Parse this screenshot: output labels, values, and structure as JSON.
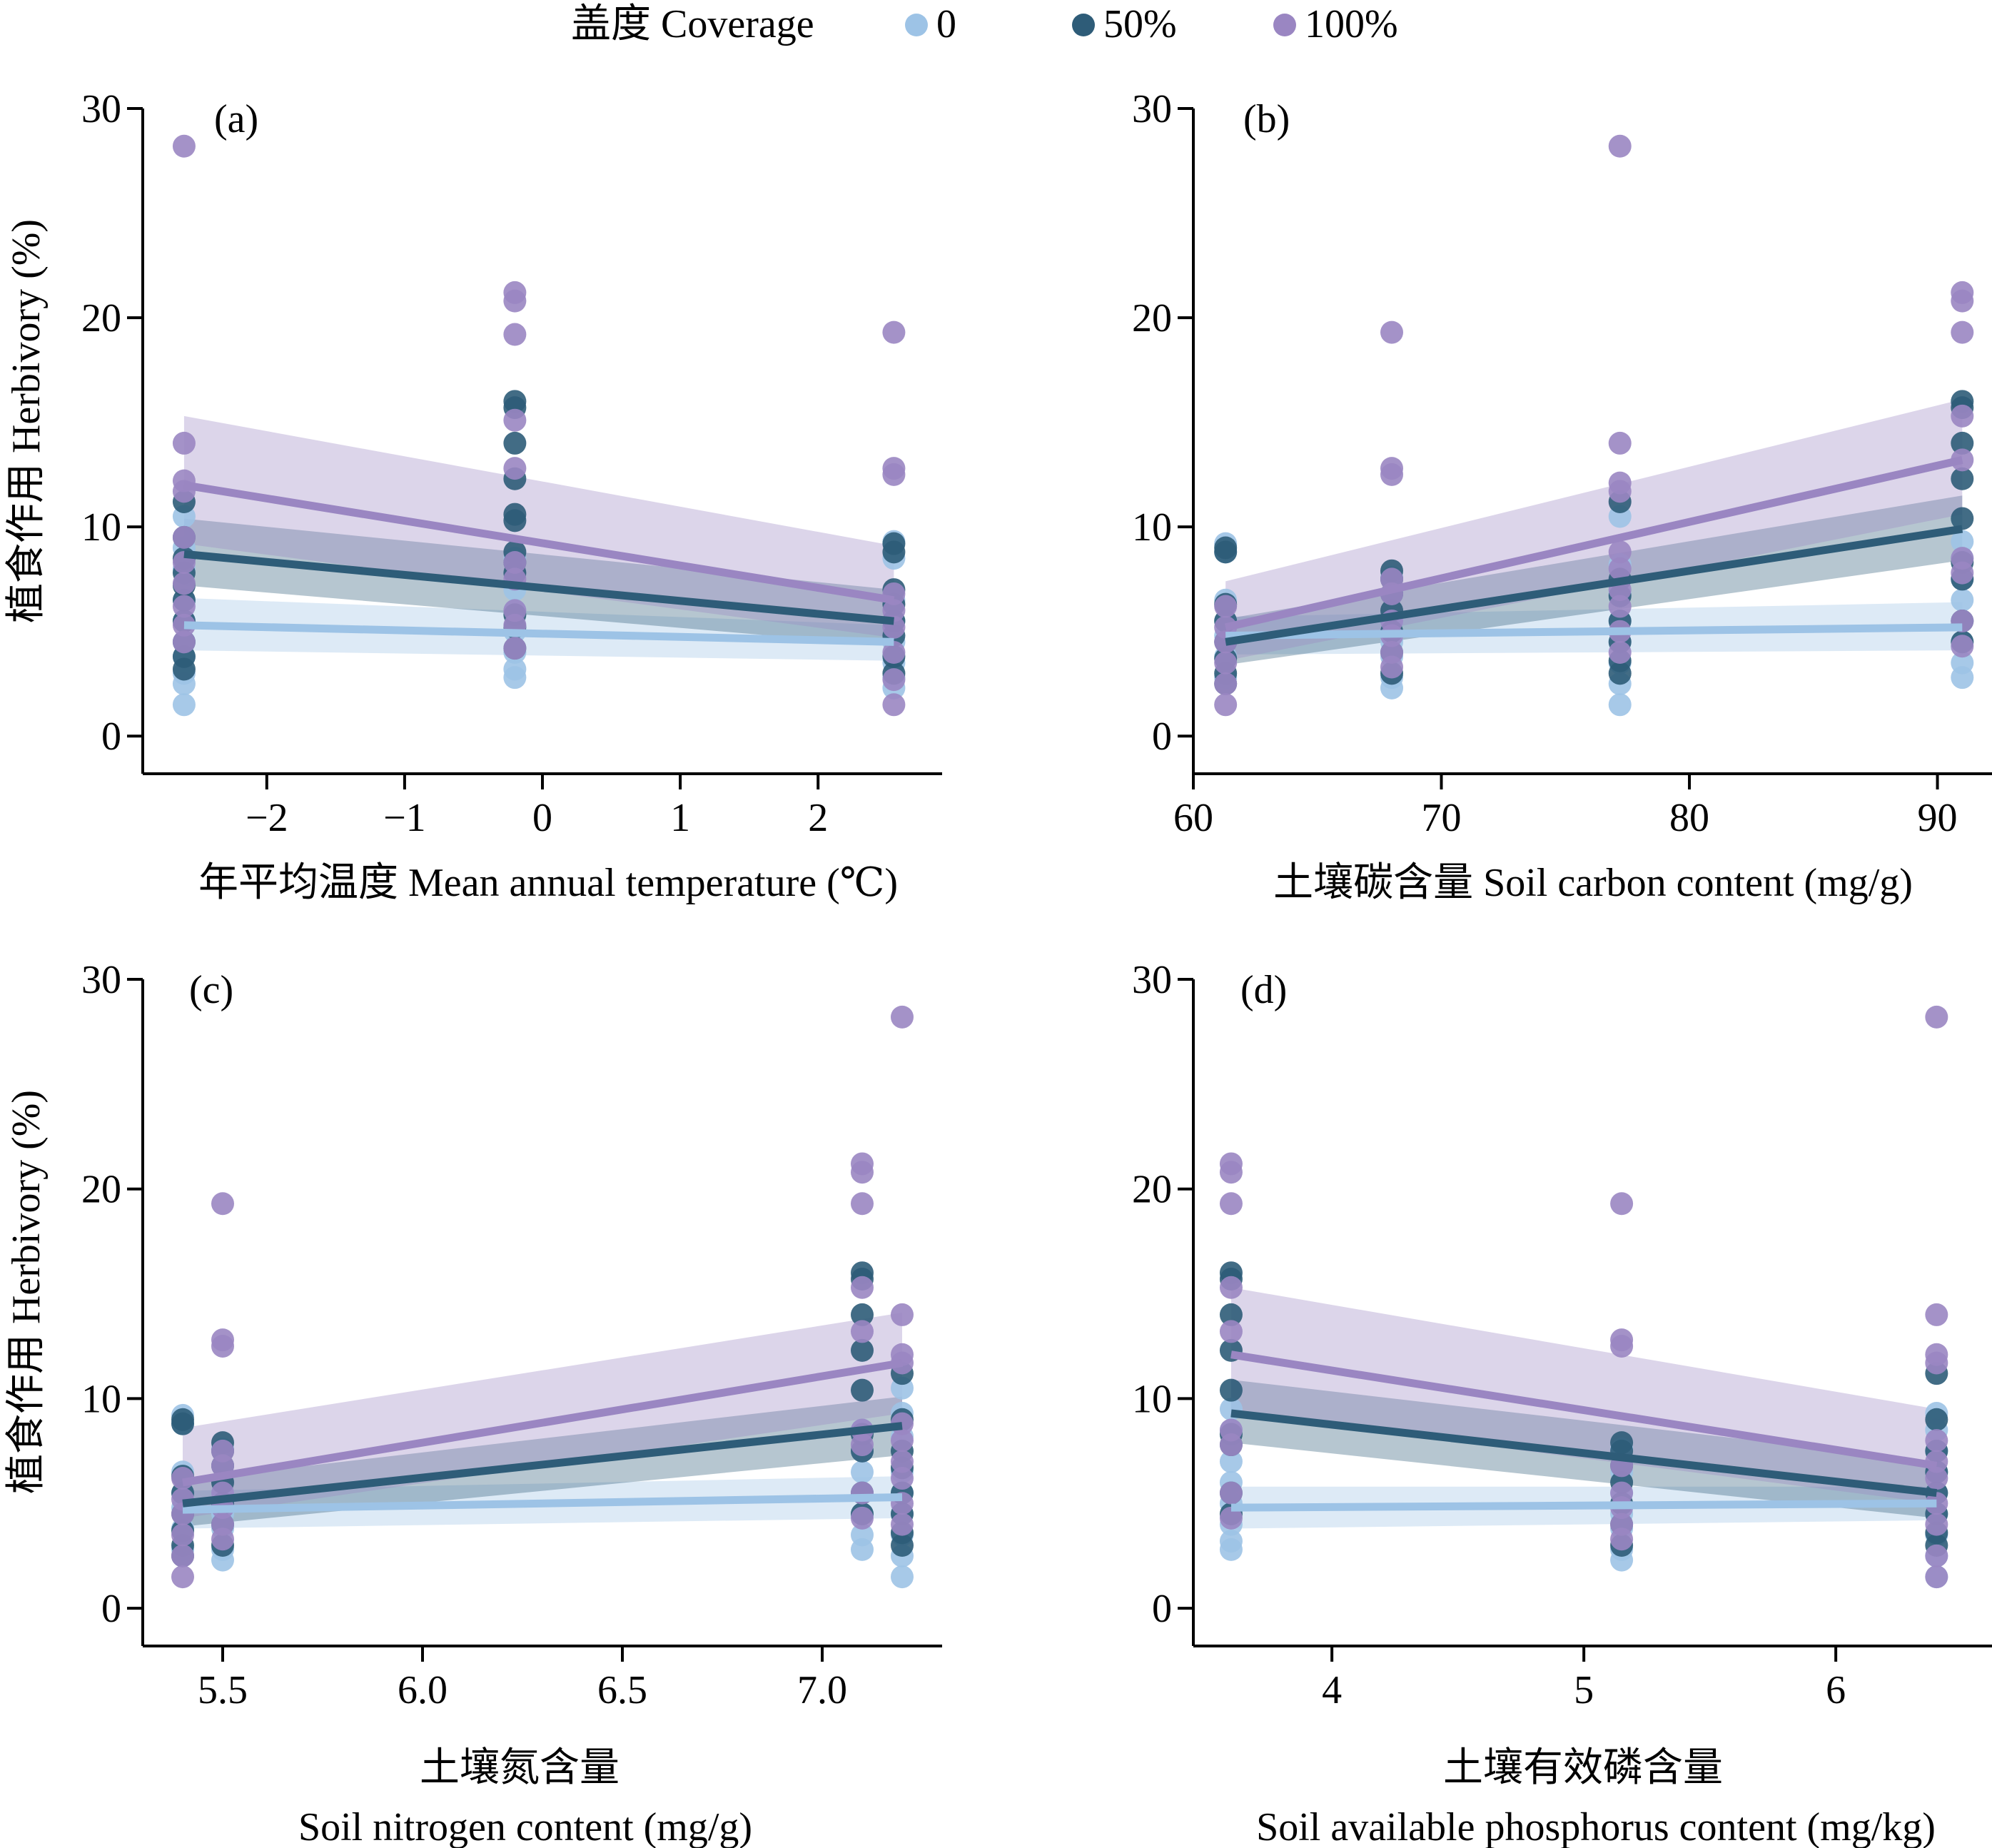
{
  "legend": {
    "title": "盖度 Coverage",
    "items": [
      {
        "label": "0",
        "color": "#9DC3E6"
      },
      {
        "label": "50%",
        "color": "#2E5C78"
      },
      {
        "label": "100%",
        "color": "#9A86C2"
      }
    ]
  },
  "colors": {
    "c0": "#9DC3E6",
    "c50": "#2E5C78",
    "c100": "#9A86C2"
  },
  "chart_data": [
    {
      "type": "scatter",
      "panel": "(a)",
      "xlabel": "年平均温度 Mean annual temperature (℃)",
      "ylabel": "植食作用 Herbivory (%)",
      "xlim": [
        -2.9,
        2.9
      ],
      "ylim": [
        -1.8,
        30
      ],
      "xticks": [
        -2,
        -1,
        0,
        1,
        2
      ],
      "xtick_labels": [
        "−2",
        "−1",
        "0",
        "1",
        "2"
      ],
      "yticks": [
        0,
        10,
        20,
        30
      ],
      "xvals": [
        -2.6,
        -0.2,
        2.55
      ],
      "points": {
        "0": [
          [
            1.5,
            2.5,
            3.0,
            3.8,
            4.5,
            5.5,
            6.5,
            8.0,
            9.0,
            10.5
          ],
          [
            2.8,
            3.2,
            4.0,
            5.0,
            6.0,
            7.0,
            8.5
          ],
          [
            2.3,
            2.8,
            3.5,
            4.5,
            5.5,
            6.5,
            8.5,
            9.3
          ]
        ],
        "50": [
          [
            3.2,
            3.8,
            4.5,
            5.5,
            6.5,
            7.2,
            7.8,
            8.5,
            9.5,
            11.2
          ],
          [
            4.2,
            5.2,
            5.8,
            7.8,
            8.3,
            8.8,
            10.3,
            10.6,
            12.3,
            14.0,
            15.7,
            16.0
          ],
          [
            3.0,
            3.8,
            4.8,
            5.5,
            6.3,
            7.0,
            8.8,
            9.2
          ]
        ],
        "100": [
          [
            4.5,
            5.3,
            6.2,
            7.3,
            8.3,
            9.5,
            11.7,
            12.2,
            14.0,
            28.2
          ],
          [
            4.2,
            5.3,
            6.0,
            7.5,
            8.3,
            12.8,
            15.1,
            19.2,
            20.8,
            21.2
          ],
          [
            1.5,
            2.7,
            4.0,
            5.2,
            6.0,
            6.8,
            12.5,
            12.8,
            19.3
          ]
        ]
      },
      "fits": {
        "0": {
          "x": [
            -2.6,
            2.55
          ],
          "y": [
            5.3,
            4.5
          ],
          "ci_lo": [
            4.1,
            3.6
          ],
          "ci_hi": [
            6.6,
            5.3
          ]
        },
        "50": {
          "x": [
            -2.6,
            2.55
          ],
          "y": [
            8.7,
            5.5
          ],
          "ci_lo": [
            7.2,
            4.3
          ],
          "ci_hi": [
            10.4,
            7.0
          ]
        },
        "100": {
          "x": [
            -2.6,
            2.55
          ],
          "y": [
            12.0,
            6.5
          ],
          "ci_lo": [
            9.2,
            4.7
          ],
          "ci_hi": [
            15.3,
            9.1
          ]
        }
      }
    },
    {
      "type": "scatter",
      "panel": "(b)",
      "xlabel": "土壤碳含量 Soil carbon content (mg/g)",
      "ylabel": "",
      "xlim": [
        60,
        92.2
      ],
      "ylim": [
        -1.8,
        30
      ],
      "xticks": [
        60,
        70,
        80,
        90
      ],
      "xtick_labels": [
        "60",
        "70",
        "80",
        "90"
      ],
      "yticks": [
        0,
        10,
        20,
        30
      ],
      "xvals": [
        61.3,
        68,
        77.2,
        91
      ],
      "points": {
        "0": [
          [
            2.8,
            3.8,
            4.8,
            5.5,
            6.5,
            8.8,
            9.2
          ],
          [
            2.3,
            2.8,
            3.8,
            4.5,
            5.5,
            6.8,
            7.6
          ],
          [
            1.5,
            2.5,
            3.5,
            4.5,
            5.5,
            6.8,
            8.2,
            10.5
          ],
          [
            2.8,
            3.5,
            4.5,
            5.5,
            6.5,
            7.5,
            8.5,
            9.3
          ]
        ],
        "50": [
          [
            2.5,
            3.0,
            3.7,
            4.5,
            5.5,
            6.3,
            8.8,
            9.0
          ],
          [
            3.0,
            4.0,
            5.0,
            6.0,
            6.8,
            7.5,
            7.9
          ],
          [
            3.0,
            3.6,
            4.5,
            5.5,
            6.7,
            7.5,
            11.2
          ],
          [
            4.5,
            5.5,
            7.5,
            8.3,
            10.4,
            12.3,
            14.0,
            15.7,
            16.0
          ]
        ],
        "100": [
          [
            1.5,
            2.5,
            3.5,
            4.5,
            5.2,
            6.2
          ],
          [
            3.3,
            4.0,
            4.8,
            5.5,
            6.8,
            7.5,
            12.5,
            12.8,
            19.3
          ],
          [
            4.0,
            5.0,
            6.2,
            7.0,
            8.0,
            8.8,
            11.7,
            12.1,
            14.0,
            28.2
          ],
          [
            4.3,
            5.5,
            7.8,
            8.5,
            13.2,
            15.3,
            19.3,
            20.8,
            21.2
          ]
        ]
      },
      "fits": {
        "0": {
          "x": [
            61.3,
            91
          ],
          "y": [
            4.8,
            5.2
          ],
          "ci_lo": [
            3.9,
            4.1
          ],
          "ci_hi": [
            5.7,
            6.4
          ]
        },
        "50": {
          "x": [
            61.3,
            91
          ],
          "y": [
            4.5,
            9.9
          ],
          "ci_lo": [
            3.4,
            8.4
          ],
          "ci_hi": [
            5.6,
            11.5
          ]
        },
        "100": {
          "x": [
            61.3,
            91
          ],
          "y": [
            5.2,
            13.2
          ],
          "ci_lo": [
            3.6,
            10.6
          ],
          "ci_hi": [
            7.4,
            16.1
          ]
        }
      }
    },
    {
      "type": "scatter",
      "panel": "(c)",
      "xlabel": "土壤氮含量",
      "xlabel2": "Soil nitrogen content (mg/g)",
      "ylabel": "植食作用 Herbivory (%)",
      "xlim": [
        5.3,
        7.3
      ],
      "ylim": [
        -1.8,
        30
      ],
      "xticks": [
        5.5,
        6.0,
        6.5,
        7.0
      ],
      "xtick_labels": [
        "5.5",
        "6.0",
        "6.5",
        "7.0"
      ],
      "yticks": [
        0,
        10,
        20,
        30
      ],
      "xvals": [
        5.4,
        5.5,
        7.1,
        7.2
      ],
      "points": {
        "0": [
          [
            2.8,
            3.8,
            4.8,
            5.5,
            6.5,
            8.8,
            9.2
          ],
          [
            2.3,
            2.8,
            3.8,
            4.5,
            5.5,
            6.8,
            7.6
          ],
          [
            2.8,
            3.5,
            4.5,
            5.5,
            6.5,
            7.5,
            8.5
          ],
          [
            1.5,
            2.5,
            3.5,
            4.5,
            5.5,
            6.5,
            8.2,
            9.3,
            10.5
          ]
        ],
        "50": [
          [
            2.5,
            3.0,
            3.7,
            4.5,
            5.5,
            6.3,
            8.8,
            9.0
          ],
          [
            3.0,
            4.0,
            5.0,
            6.0,
            6.8,
            7.5,
            7.9
          ],
          [
            4.5,
            5.5,
            7.5,
            8.3,
            10.4,
            12.3,
            14.0,
            15.7,
            16.0
          ],
          [
            3.0,
            3.6,
            4.5,
            5.5,
            6.7,
            7.5,
            9.0,
            11.2
          ]
        ],
        "100": [
          [
            1.5,
            2.5,
            3.5,
            4.5,
            5.2,
            6.2
          ],
          [
            3.3,
            4.0,
            4.8,
            5.5,
            6.8,
            7.5,
            12.5,
            12.8,
            19.3
          ],
          [
            4.3,
            5.5,
            7.8,
            8.5,
            13.2,
            15.3,
            19.3,
            20.8,
            21.2
          ],
          [
            4.0,
            5.0,
            6.2,
            7.0,
            8.0,
            8.8,
            11.7,
            12.1,
            14.0,
            28.2
          ]
        ]
      },
      "fits": {
        "0": {
          "x": [
            5.4,
            7.2
          ],
          "y": [
            4.7,
            5.3
          ],
          "ci_lo": [
            3.8,
            4.3
          ],
          "ci_hi": [
            5.6,
            6.3
          ]
        },
        "50": {
          "x": [
            5.4,
            7.2
          ],
          "y": [
            5.0,
            8.7
          ],
          "ci_lo": [
            3.9,
            7.3
          ],
          "ci_hi": [
            6.1,
            10.1
          ]
        },
        "100": {
          "x": [
            5.4,
            7.2
          ],
          "y": [
            6.0,
            11.7
          ],
          "ci_lo": [
            4.3,
            9.3
          ],
          "ci_hi": [
            8.6,
            14.1
          ]
        }
      }
    },
    {
      "type": "scatter",
      "panel": "(d)",
      "xlabel": "土壤有效磷含量",
      "xlabel2": "Soil available phosphorus content (mg/kg)",
      "ylabel": "",
      "xlim": [
        3.45,
        6.62
      ],
      "ylim": [
        -1.8,
        30
      ],
      "xticks": [
        4,
        5,
        6
      ],
      "xtick_labels": [
        "4",
        "5",
        "6"
      ],
      "yticks": [
        0,
        10,
        20,
        30
      ],
      "xvals": [
        3.6,
        5.15,
        6.4
      ],
      "points": {
        "0": [
          [
            2.8,
            3.2,
            4.0,
            5.0,
            6.0,
            7.0,
            8.5,
            9.5
          ],
          [
            2.3,
            2.8,
            3.8,
            4.5,
            5.5,
            6.5,
            7.6
          ],
          [
            1.5,
            2.5,
            3.5,
            4.5,
            5.5,
            6.5,
            7.5,
            8.5,
            9.3
          ]
        ],
        "50": [
          [
            4.5,
            5.5,
            7.8,
            8.3,
            10.4,
            12.3,
            14.0,
            15.7,
            16.0
          ],
          [
            3.0,
            4.0,
            5.0,
            6.0,
            6.8,
            7.5,
            7.9
          ],
          [
            3.0,
            3.6,
            4.5,
            5.5,
            6.5,
            7.5,
            9.0,
            11.2
          ]
        ],
        "100": [
          [
            4.3,
            5.5,
            7.8,
            8.5,
            13.2,
            15.3,
            19.3,
            20.8,
            21.2
          ],
          [
            3.3,
            4.0,
            4.8,
            5.5,
            6.8,
            12.5,
            12.8,
            19.3
          ],
          [
            1.5,
            2.5,
            4.0,
            5.0,
            6.2,
            7.0,
            8.0,
            11.7,
            12.1,
            14.0,
            28.2
          ]
        ]
      },
      "fits": {
        "0": {
          "x": [
            3.6,
            6.4
          ],
          "y": [
            4.8,
            5.0
          ],
          "ci_lo": [
            3.8,
            4.2
          ],
          "ci_hi": [
            5.8,
            5.8
          ]
        },
        "50": {
          "x": [
            3.6,
            6.4
          ],
          "y": [
            9.3,
            5.5
          ],
          "ci_lo": [
            7.9,
            4.3
          ],
          "ci_hi": [
            10.9,
            7.0
          ]
        },
        "100": {
          "x": [
            3.6,
            6.4
          ],
          "y": [
            12.1,
            6.8
          ],
          "ci_lo": [
            9.3,
            5.0
          ],
          "ci_hi": [
            15.3,
            9.5
          ]
        }
      }
    }
  ]
}
